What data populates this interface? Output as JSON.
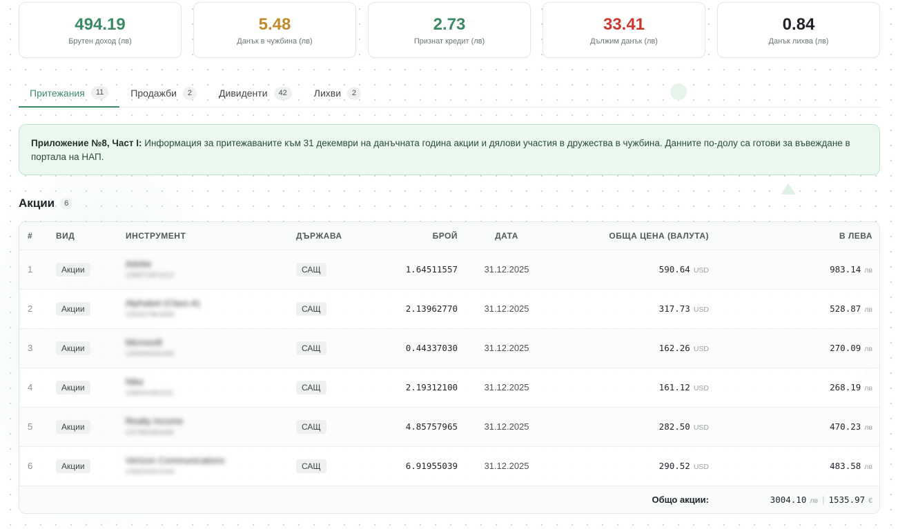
{
  "stats": [
    {
      "value": "494.19",
      "label": "Брутен доход (лв)",
      "color": "#3a8a66"
    },
    {
      "value": "5.48",
      "label": "Данък в чужбина (лв)",
      "color": "#c08a2a"
    },
    {
      "value": "2.73",
      "label": "Признат кредит (лв)",
      "color": "#3a8a66"
    },
    {
      "value": "33.41",
      "label": "Дължим данък (лв)",
      "color": "#c9392f"
    },
    {
      "value": "0.84",
      "label": "Данък лихва (лв)",
      "color": "#1f2328"
    }
  ],
  "tabs": [
    {
      "label": "Притежания",
      "count": "11",
      "active": true
    },
    {
      "label": "Продажби",
      "count": "2",
      "active": false
    },
    {
      "label": "Дивиденти",
      "count": "42",
      "active": false
    },
    {
      "label": "Лихви",
      "count": "2",
      "active": false
    }
  ],
  "notice": {
    "bold": "Приложение №8, Част I:",
    "text": "Информация за притежаваните към 31 декември на данъчната година акции и дялови участия в дружества в чужбина. Данните по-долу са готови за въвеждане в портала на НАП."
  },
  "section": {
    "title": "Акции",
    "count": "6"
  },
  "table": {
    "headers": {
      "idx": "#",
      "type": "ВИД",
      "instrument": "ИНСТРУМЕНТ",
      "country": "ДЪРЖАВА",
      "qty": "БРОЙ",
      "date": "ДАТА",
      "total": "ОБЩА ЦЕНА (ВАЛУТА)",
      "bgn": "В ЛЕВА"
    },
    "rows": [
      {
        "idx": "1",
        "type": "Акции",
        "name": "Adobe",
        "isin": "US00724F1012",
        "country": "САЩ",
        "qty": "1.64511557",
        "date": "31.12.2025",
        "total": "590.64",
        "currency": "USD",
        "bgn": "983.14",
        "bgn_unit": "лв"
      },
      {
        "idx": "2",
        "type": "Акции",
        "name": "Alphabet (Class A)",
        "isin": "US02079K3059",
        "country": "САЩ",
        "qty": "2.13962770",
        "date": "31.12.2025",
        "total": "317.73",
        "currency": "USD",
        "bgn": "528.87",
        "bgn_unit": "лв"
      },
      {
        "idx": "3",
        "type": "Акции",
        "name": "Microsoft",
        "isin": "US5949181045",
        "country": "САЩ",
        "qty": "0.44337030",
        "date": "31.12.2025",
        "total": "162.26",
        "currency": "USD",
        "bgn": "270.09",
        "bgn_unit": "лв"
      },
      {
        "idx": "4",
        "type": "Акции",
        "name": "Nike",
        "isin": "US6541061031",
        "country": "САЩ",
        "qty": "2.19312100",
        "date": "31.12.2025",
        "total": "161.12",
        "currency": "USD",
        "bgn": "268.19",
        "bgn_unit": "лв"
      },
      {
        "idx": "5",
        "type": "Акции",
        "name": "Realty Income",
        "isin": "US7561091049",
        "country": "САЩ",
        "qty": "4.85757965",
        "date": "31.12.2025",
        "total": "282.50",
        "currency": "USD",
        "bgn": "470.23",
        "bgn_unit": "лв"
      },
      {
        "idx": "6",
        "type": "Акции",
        "name": "Verizon Communications",
        "isin": "US92343V1044",
        "country": "САЩ",
        "qty": "6.91955039",
        "date": "31.12.2025",
        "total": "290.52",
        "currency": "USD",
        "bgn": "483.58",
        "bgn_unit": "лв"
      }
    ],
    "footer": {
      "label": "Общо акции:",
      "bgn": "3004.10",
      "bgn_unit": "лв",
      "eur": "1535.97",
      "eur_unit": "€"
    }
  }
}
